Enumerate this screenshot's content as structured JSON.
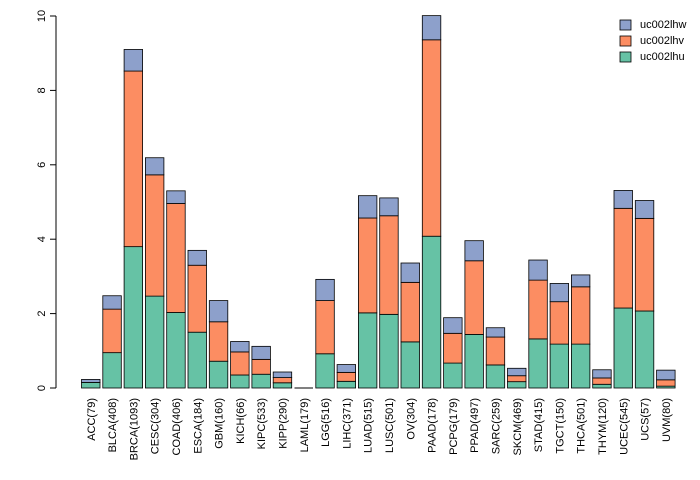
{
  "chart_data": {
    "type": "bar",
    "stacked": true,
    "title": "",
    "xlabel": "",
    "ylabel": "",
    "ylim": [
      0,
      10
    ],
    "yticks": [
      0,
      2,
      4,
      6,
      8,
      10
    ],
    "legend_position": "top-right",
    "categories": [
      "ACC(79)",
      "BLCA(408)",
      "BRCA(1093)",
      "CESC(304)",
      "COAD(406)",
      "ESCA(184)",
      "GBM(160)",
      "KICH(66)",
      "KIPC(533)",
      "KIPP(290)",
      "LAML(179)",
      "LGG(516)",
      "LIHC(371)",
      "LUAD(515)",
      "LUSC(501)",
      "OV(304)",
      "PAAD(178)",
      "PCPG(179)",
      "PPAD(497)",
      "SARC(259)",
      "SKCM(469)",
      "STAD(415)",
      "TGCT(150)",
      "THCA(501)",
      "THYM(120)",
      "UCEC(545)",
      "UCS(57)",
      "UVM(80)"
    ],
    "series": [
      {
        "name": "uc002lhu",
        "color": "#66c2a5",
        "values": [
          0.15,
          0.95,
          3.8,
          2.47,
          2.03,
          1.5,
          0.72,
          0.35,
          0.37,
          0.14,
          0.0,
          0.92,
          0.18,
          2.02,
          1.98,
          1.24,
          4.08,
          0.67,
          1.44,
          0.62,
          0.17,
          1.32,
          1.18,
          1.18,
          0.1,
          2.15,
          2.07,
          0.05
        ]
      },
      {
        "name": "uc002lhv",
        "color": "#fc8d62",
        "values": [
          0.0,
          1.17,
          4.72,
          3.26,
          2.93,
          1.8,
          1.06,
          0.62,
          0.4,
          0.14,
          0.0,
          1.43,
          0.24,
          2.55,
          2.65,
          1.6,
          5.28,
          0.8,
          1.98,
          0.75,
          0.16,
          1.58,
          1.14,
          1.54,
          0.17,
          2.68,
          2.49,
          0.17
        ]
      },
      {
        "name": "uc002lhw",
        "color": "#8da0cb",
        "values": [
          0.08,
          0.36,
          0.58,
          0.46,
          0.34,
          0.4,
          0.57,
          0.28,
          0.35,
          0.15,
          0.0,
          0.57,
          0.21,
          0.6,
          0.48,
          0.52,
          0.65,
          0.42,
          0.54,
          0.25,
          0.2,
          0.54,
          0.49,
          0.32,
          0.22,
          0.48,
          0.48,
          0.26
        ]
      }
    ],
    "legend_order": [
      "uc002lhw",
      "uc002lhv",
      "uc002lhu"
    ]
  }
}
